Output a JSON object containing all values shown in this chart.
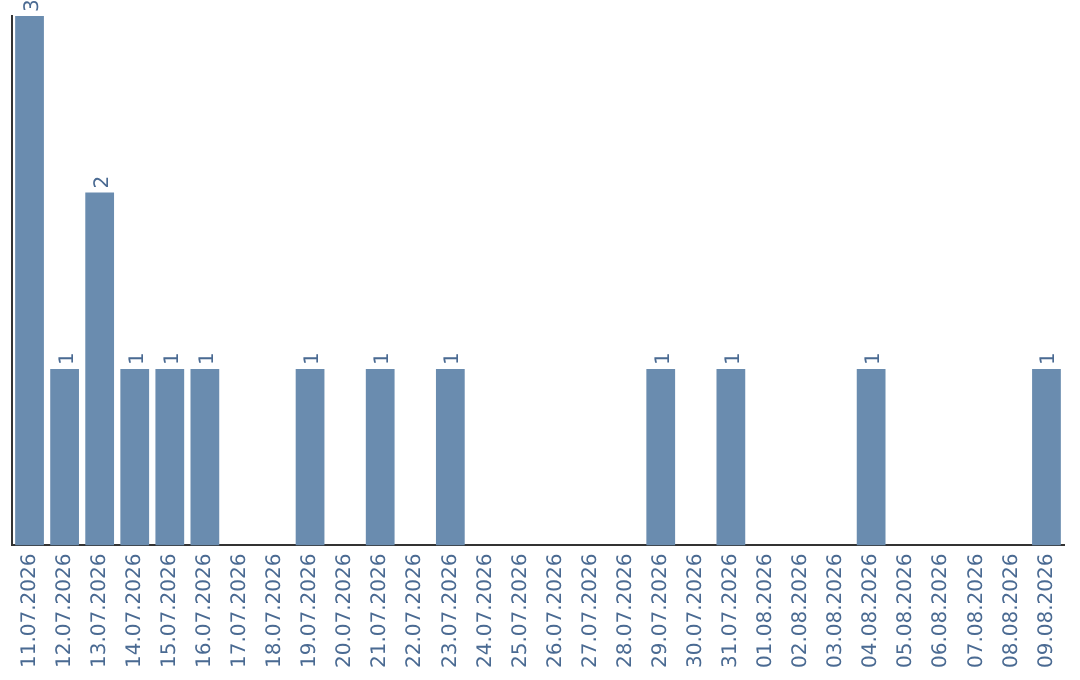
{
  "chart_data": {
    "type": "bar",
    "categories": [
      "11.07.2026",
      "12.07.2026",
      "13.07.2026",
      "14.07.2026",
      "15.07.2026",
      "16.07.2026",
      "17.07.2026",
      "18.07.2026",
      "19.07.2026",
      "20.07.2026",
      "21.07.2026",
      "22.07.2026",
      "23.07.2026",
      "24.07.2026",
      "25.07.2026",
      "26.07.2026",
      "27.07.2026",
      "28.07.2026",
      "29.07.2026",
      "30.07.2026",
      "31.07.2026",
      "01.08.2026",
      "02.08.2026",
      "03.08.2026",
      "04.08.2026",
      "05.08.2026",
      "06.08.2026",
      "07.08.2026",
      "08.08.2026",
      "09.08.2026"
    ],
    "values": [
      3,
      1,
      2,
      1,
      1,
      1,
      0,
      0,
      1,
      0,
      1,
      0,
      1,
      0,
      0,
      0,
      0,
      0,
      1,
      0,
      1,
      0,
      0,
      0,
      1,
      0,
      0,
      0,
      0,
      1
    ],
    "value_labels": [
      "3",
      "1",
      "2",
      "1",
      "1",
      "1",
      null,
      null,
      "1",
      null,
      "1",
      null,
      "1",
      null,
      null,
      null,
      null,
      null,
      "1",
      null,
      "1",
      null,
      null,
      null,
      "1",
      null,
      null,
      null,
      null,
      "1"
    ],
    "color": "#6a8caf",
    "ylim": [
      0,
      3
    ],
    "tick_labels": "x",
    "grid": false,
    "legend": false
  }
}
